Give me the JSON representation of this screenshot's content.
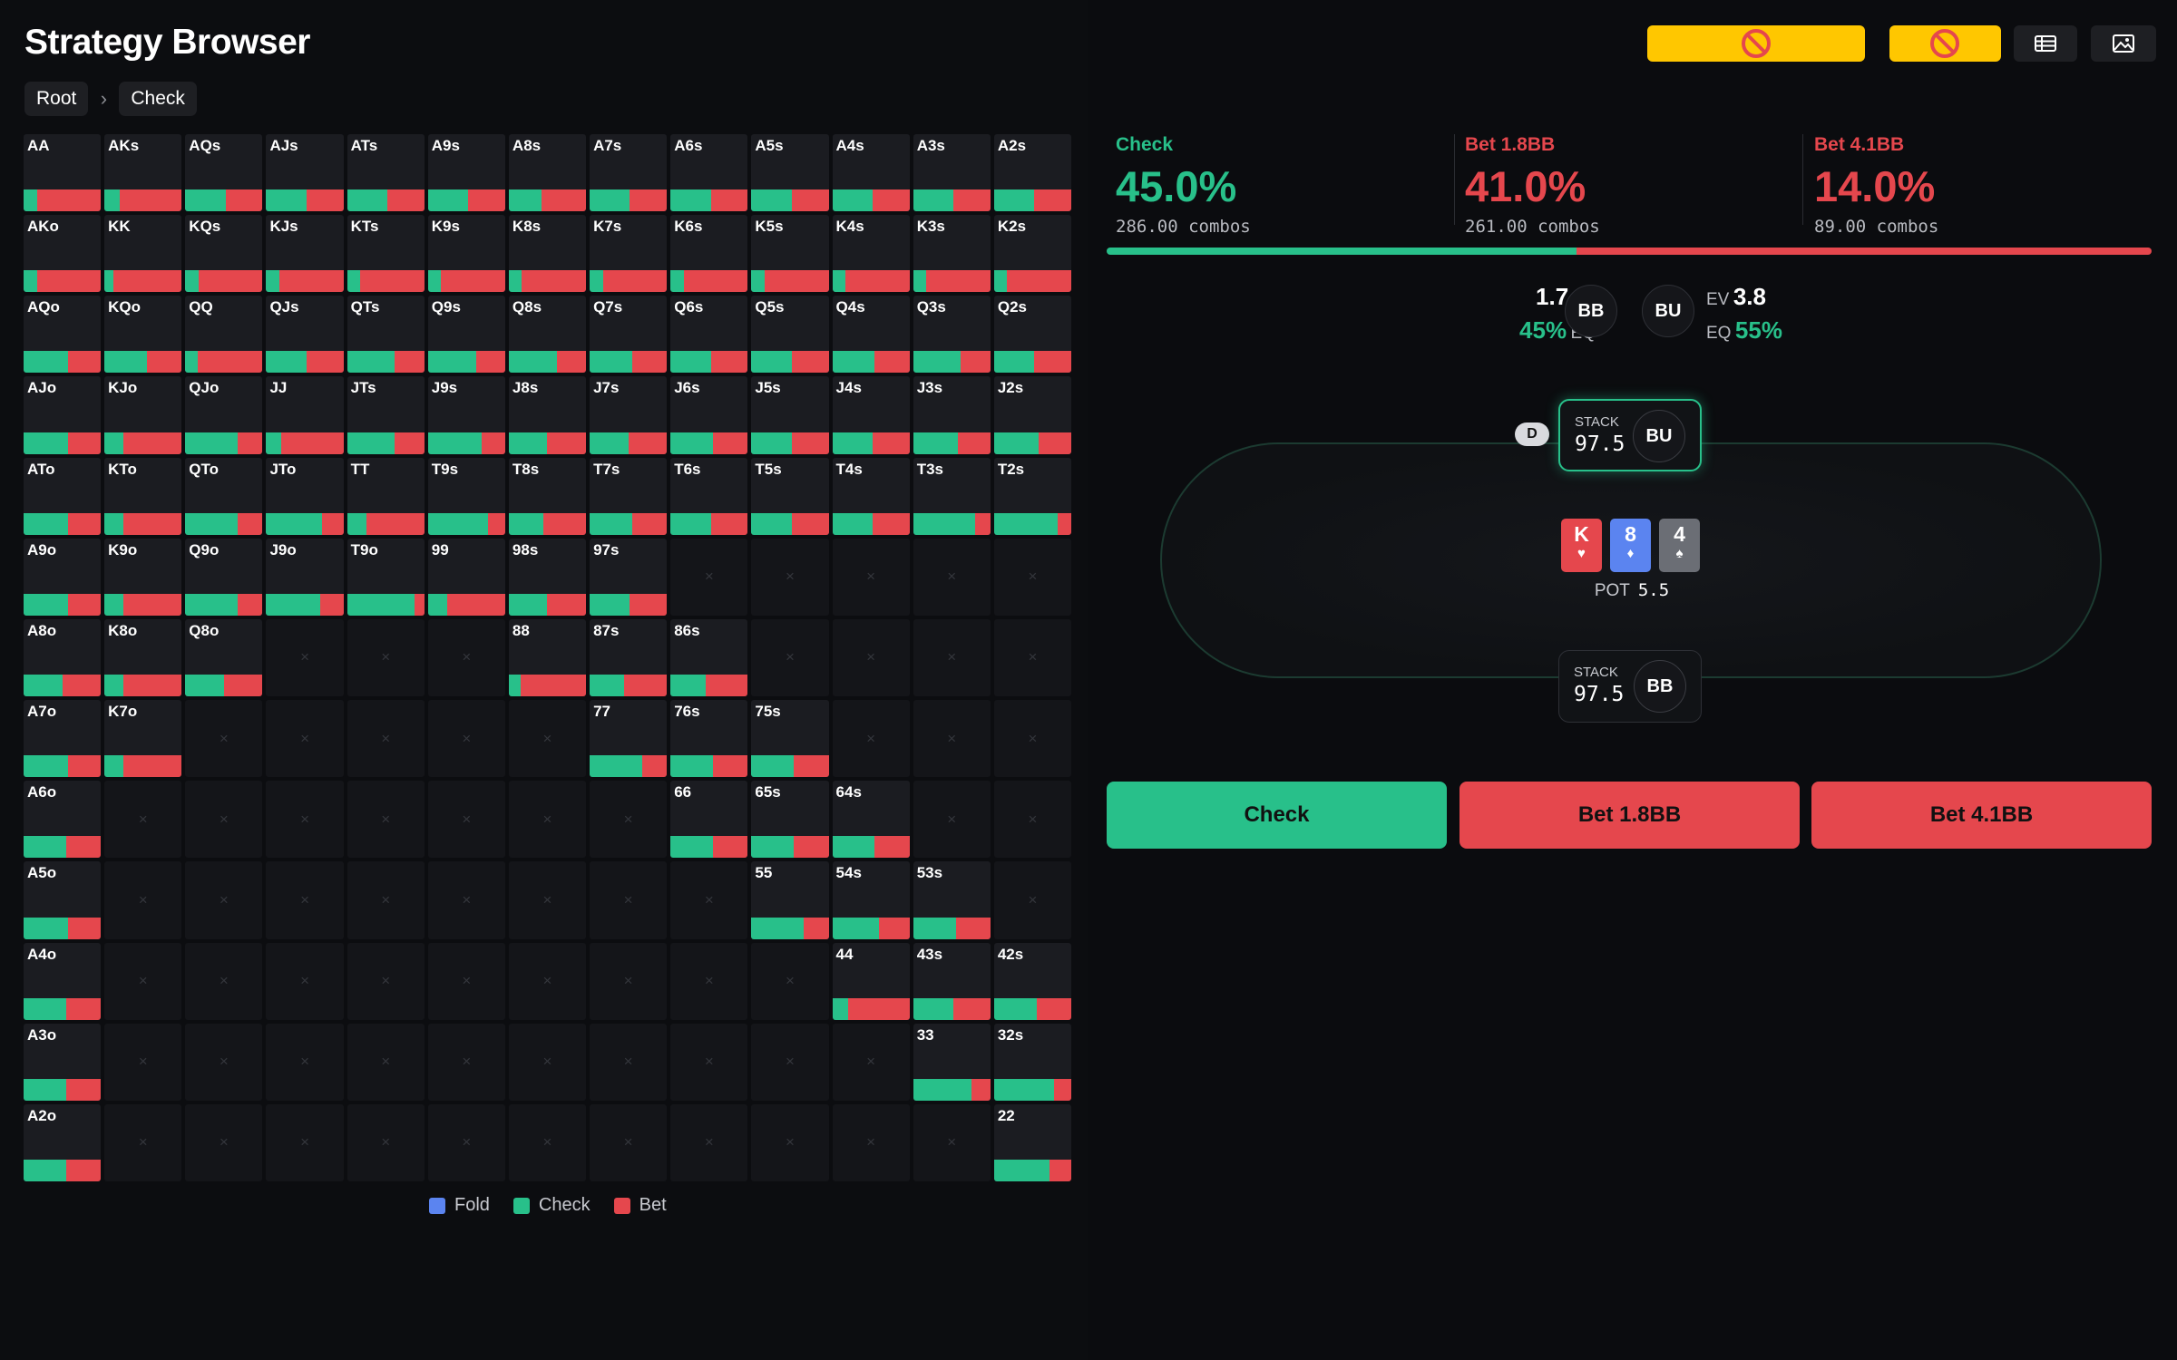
{
  "app": {
    "title": "Strategy Browser",
    "breadcrumbs": [
      "Root",
      "Check"
    ]
  },
  "toolbar": {
    "warn_icon_1": "no-entry-icon",
    "warn_icon_2": "no-entry-icon",
    "table_view_icon": "table-icon",
    "image_view_icon": "image-icon"
  },
  "colors": {
    "fold": "#5b84f0",
    "check": "#28c08a",
    "bet": "#e5474d",
    "warning": "#ffc700"
  },
  "legend": [
    {
      "label": "Fold",
      "color": "#5b84f0"
    },
    {
      "label": "Check",
      "color": "#28c08a"
    },
    {
      "label": "Bet",
      "color": "#e5474d"
    }
  ],
  "hands": [
    [
      "AA",
      "AKs",
      "AQs",
      "AJs",
      "ATs",
      "A9s",
      "A8s",
      "A7s",
      "A6s",
      "A5s",
      "A4s",
      "A3s",
      "A2s"
    ],
    [
      "AKo",
      "KK",
      "KQs",
      "KJs",
      "KTs",
      "K9s",
      "K8s",
      "K7s",
      "K6s",
      "K5s",
      "K4s",
      "K3s",
      "K2s"
    ],
    [
      "AQo",
      "KQo",
      "QQ",
      "QJs",
      "QTs",
      "Q9s",
      "Q8s",
      "Q7s",
      "Q6s",
      "Q5s",
      "Q4s",
      "Q3s",
      "Q2s"
    ],
    [
      "AJo",
      "KJo",
      "QJo",
      "JJ",
      "JTs",
      "J9s",
      "J8s",
      "J7s",
      "J6s",
      "J5s",
      "J4s",
      "J3s",
      "J2s"
    ],
    [
      "ATo",
      "KTo",
      "QTo",
      "JTo",
      "TT",
      "T9s",
      "T8s",
      "T7s",
      "T6s",
      "T5s",
      "T4s",
      "T3s",
      "T2s"
    ],
    [
      "A9o",
      "K9o",
      "Q9o",
      "J9o",
      "T9o",
      "99",
      "98s",
      "97s",
      "",
      "",
      "",
      "",
      ""
    ],
    [
      "A8o",
      "K8o",
      "Q8o",
      "",
      "",
      "",
      "88",
      "87s",
      "86s",
      "",
      "",
      "",
      ""
    ],
    [
      "A7o",
      "K7o",
      "",
      "",
      "",
      "",
      "",
      "77",
      "76s",
      "75s",
      "",
      "",
      ""
    ],
    [
      "A6o",
      "",
      "",
      "",
      "",
      "",
      "",
      "",
      "66",
      "65s",
      "64s",
      "",
      ""
    ],
    [
      "A5o",
      "",
      "",
      "",
      "",
      "",
      "",
      "",
      "",
      "55",
      "54s",
      "53s",
      ""
    ],
    [
      "A4o",
      "",
      "",
      "",
      "",
      "",
      "",
      "",
      "",
      "",
      "44",
      "43s",
      "42s"
    ],
    [
      "A3o",
      "",
      "",
      "",
      "",
      "",
      "",
      "",
      "",
      "",
      "",
      "33",
      "32s"
    ],
    [
      "A2o",
      "",
      "",
      "",
      "",
      "",
      "",
      "",
      "",
      "",
      "",
      "",
      "22"
    ]
  ],
  "check_freq": [
    [
      0.18,
      0.2,
      0.52,
      0.52,
      0.52,
      0.52,
      0.42,
      0.52,
      0.52,
      0.52,
      0.52,
      0.52,
      0.52
    ],
    [
      0.18,
      0.12,
      0.17,
      0.17,
      0.17,
      0.17,
      0.17,
      0.17,
      0.17,
      0.17,
      0.17,
      0.17,
      0.17
    ],
    [
      0.58,
      0.55,
      0.16,
      0.52,
      0.62,
      0.62,
      0.62,
      0.55,
      0.52,
      0.52,
      0.55,
      0.62,
      0.52
    ],
    [
      0.58,
      0.25,
      0.68,
      0.2,
      0.62,
      0.7,
      0.5,
      0.5,
      0.55,
      0.52,
      0.52,
      0.58,
      0.58
    ],
    [
      0.58,
      0.25,
      0.68,
      0.72,
      0.25,
      0.78,
      0.45,
      0.55,
      0.52,
      0.52,
      0.52,
      0.8,
      0.82
    ],
    [
      0.58,
      0.25,
      0.68,
      0.7,
      0.87,
      0.25,
      0.5,
      0.52,
      null,
      null,
      null,
      null,
      null
    ],
    [
      0.5,
      0.25,
      0.5,
      null,
      null,
      null,
      0.15,
      0.45,
      0.45,
      null,
      null,
      null,
      null
    ],
    [
      0.58,
      0.25,
      null,
      null,
      null,
      null,
      null,
      0.68,
      0.55,
      0.55,
      null,
      null,
      null
    ],
    [
      0.55,
      null,
      null,
      null,
      null,
      null,
      null,
      null,
      0.55,
      0.55,
      0.55,
      null,
      null
    ],
    [
      0.58,
      null,
      null,
      null,
      null,
      null,
      null,
      null,
      null,
      0.68,
      0.6,
      0.55,
      null
    ],
    [
      0.55,
      null,
      null,
      null,
      null,
      null,
      null,
      null,
      null,
      null,
      0.2,
      0.52,
      0.55
    ],
    [
      0.55,
      null,
      null,
      null,
      null,
      null,
      null,
      null,
      null,
      null,
      null,
      0.75,
      0.78
    ],
    [
      0.55,
      null,
      null,
      null,
      null,
      null,
      null,
      null,
      null,
      null,
      null,
      null,
      0.72
    ]
  ],
  "summary": {
    "check": {
      "name": "Check",
      "pct": "45.0%",
      "combos": "286.00 combos",
      "value": 45.0
    },
    "bet_small": {
      "name": "Bet 1.8BB",
      "pct": "41.0%",
      "combos": "261.00 combos",
      "value": 41.0
    },
    "bet_large": {
      "name": "Bet 4.1BB",
      "pct": "14.0%",
      "combos": "89.00 combos",
      "value": 14.0
    }
  },
  "players": {
    "bb": {
      "pos": "BB",
      "ev": "1.7",
      "ev_label": "EV",
      "eq": "45%",
      "eq_label": "EQ",
      "stack_label": "STACK",
      "stack": "97.5"
    },
    "bu": {
      "pos": "BU",
      "ev": "3.8",
      "ev_label": "EV",
      "eq": "55%",
      "eq_label": "EQ",
      "stack_label": "STACK",
      "stack": "97.5"
    }
  },
  "dealer_label": "D",
  "board": [
    {
      "rank": "K",
      "suit": "♥",
      "color": "#e5474d"
    },
    {
      "rank": "8",
      "suit": "♦",
      "color": "#5b84f0"
    },
    {
      "rank": "4",
      "suit": "♠",
      "color": "#6b6e75"
    }
  ],
  "pot": {
    "label": "POT",
    "value": "5.5"
  },
  "actions": [
    {
      "label": "Check",
      "color": "#28c08a"
    },
    {
      "label": "Bet 1.8BB",
      "color": "#e5474d"
    },
    {
      "label": "Bet 4.1BB",
      "color": "#e5474d"
    }
  ]
}
